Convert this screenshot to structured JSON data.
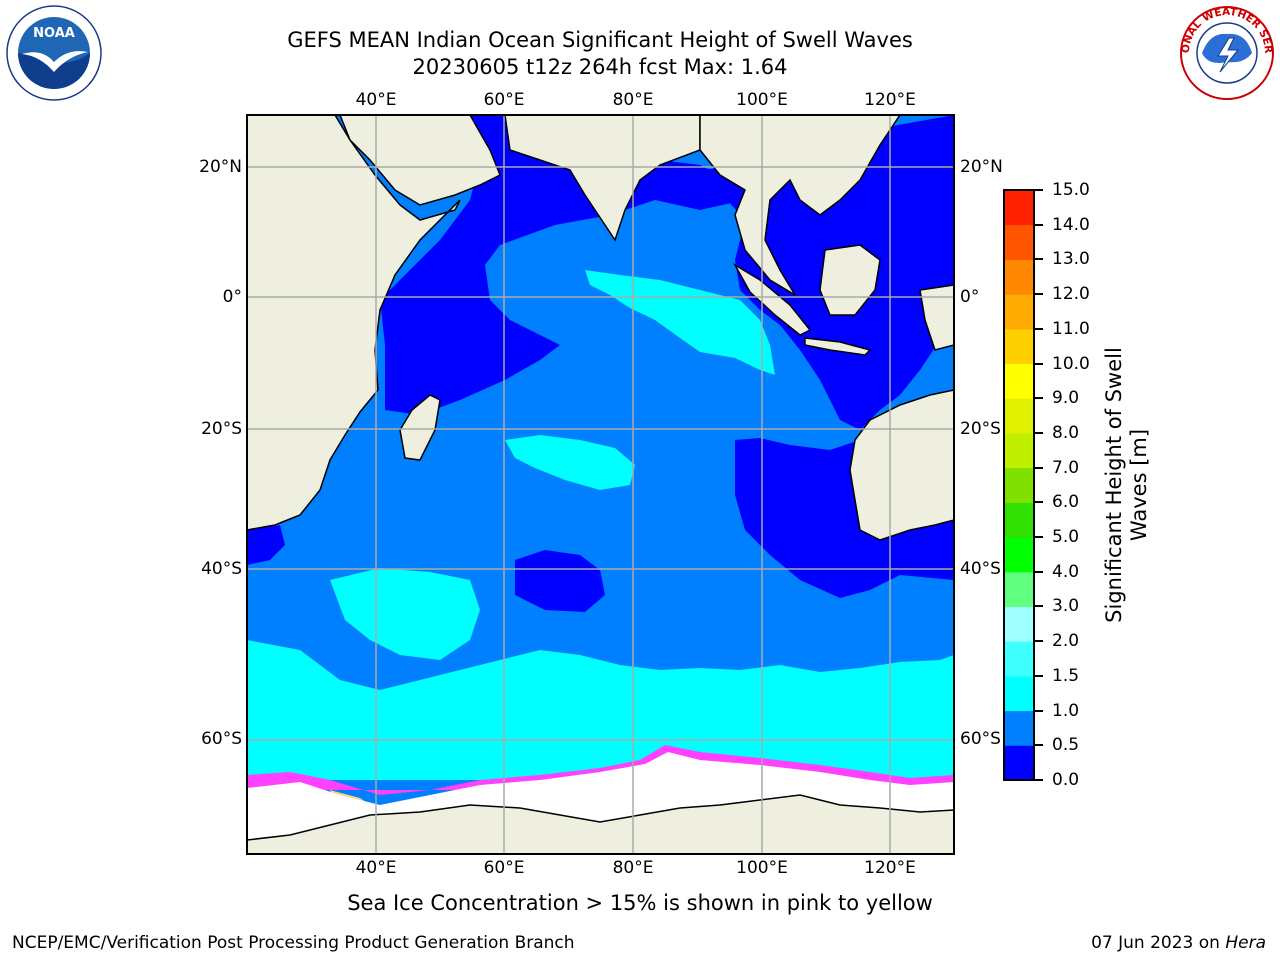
{
  "title": {
    "line1": "GEFS MEAN Indian Ocean Significant Height of Swell Waves",
    "line2": "20230605 t12z 264h fcst   Max: 1.64"
  },
  "axes": {
    "lon_ticks": [
      "40°E",
      "60°E",
      "80°E",
      "100°E",
      "120°E"
    ],
    "lat_ticks": [
      "20°N",
      "0°",
      "20°S",
      "40°S",
      "60°S"
    ]
  },
  "colorbar": {
    "label_line1": "Significant Height of Swell",
    "label_line2": "Waves [m]",
    "ticks": [
      "0.0",
      "0.5",
      "1.0",
      "1.5",
      "2.0",
      "3.0",
      "4.0",
      "5.0",
      "6.0",
      "7.0",
      "8.0",
      "9.0",
      "10.0",
      "11.0",
      "12.0",
      "13.0",
      "14.0",
      "15.0"
    ],
    "colors": [
      "#0000ff",
      "#0080ff",
      "#00ffff",
      "#40ffff",
      "#a0ffff",
      "#60ff80",
      "#00ff00",
      "#30e000",
      "#80e000",
      "#c0f000",
      "#e0f000",
      "#ffff00",
      "#ffd000",
      "#ffaa00",
      "#ff8800",
      "#ff5500",
      "#ff2200"
    ]
  },
  "footnote": "Sea Ice Concentration > 15% is shown in pink to yellow",
  "footer": {
    "left": "NCEP/EMC/Verification Post Processing Product Generation Branch",
    "right_prefix": "07 Jun 2023 on ",
    "right_host": "Hera"
  },
  "logos": {
    "left": "NOAA",
    "right": "NATIONAL WEATHER SERVICE"
  },
  "colors": {
    "land": "#efefe0",
    "swell_0_0_5": "#0000ff",
    "swell_0_5_1_0": "#0080ff",
    "swell_1_0_1_5": "#00ffff",
    "swell_1_5_2_0": "#40ffff",
    "sea_ice": "#ff40ff",
    "gridline": "#aaaaaa"
  }
}
